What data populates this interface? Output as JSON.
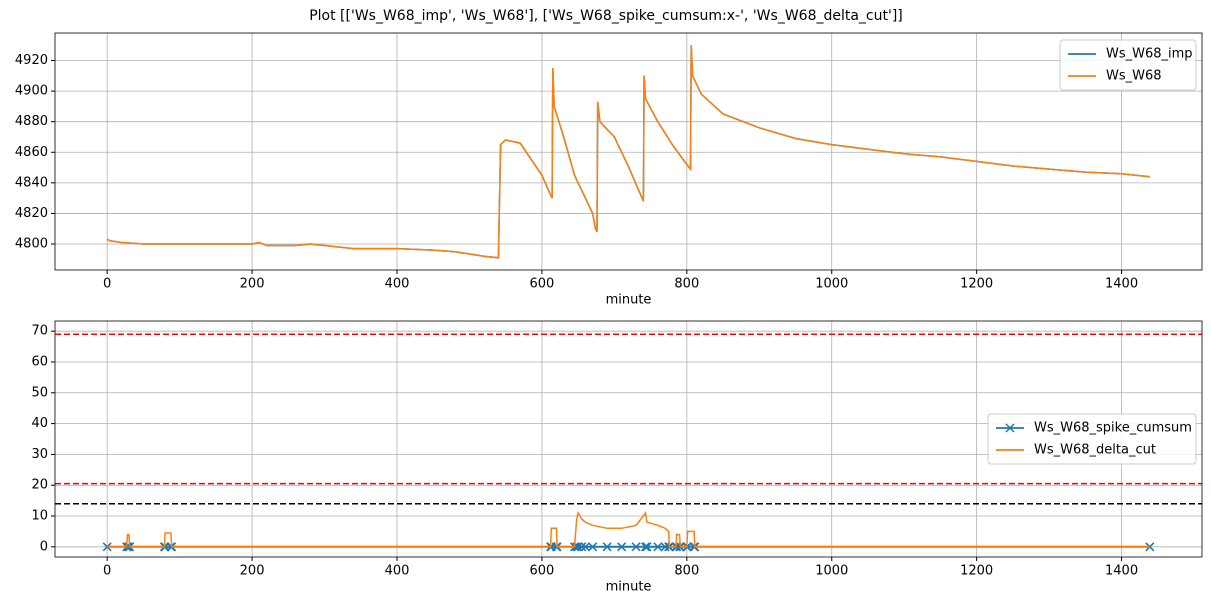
{
  "title": "Plot [['Ws_W68_imp', 'Ws_W68'], ['Ws_W68_spike_cumsum:x-', 'Ws_W68_delta_cut']]",
  "chart_data": [
    {
      "type": "line",
      "xlabel": "minute",
      "x": [
        0,
        5,
        20,
        50,
        100,
        150,
        200,
        210,
        220,
        260,
        280,
        300,
        340,
        400,
        450,
        480,
        520,
        540,
        543,
        550,
        570,
        580,
        600,
        612,
        614,
        615,
        617,
        630,
        645,
        650,
        660,
        670,
        674,
        676,
        677,
        680,
        700,
        720,
        740,
        741,
        743,
        760,
        780,
        800,
        805,
        806,
        808,
        820,
        850,
        900,
        950,
        1000,
        1050,
        1100,
        1150,
        1200,
        1250,
        1300,
        1350,
        1400,
        1439
      ],
      "series": [
        {
          "name": "Ws_W68_imp",
          "color": "#1f77b4",
          "values": [
            4803,
            4802,
            4801,
            4800,
            4800,
            4800,
            4800,
            4801,
            4799,
            4799,
            4800,
            4799,
            4797,
            4797,
            4796,
            4795,
            4792,
            4791,
            4865,
            4868,
            4866,
            4859,
            4845,
            4832,
            4830,
            4915,
            4890,
            4870,
            4845,
            4840,
            4830,
            4820,
            4810,
            4808,
            4893,
            4880,
            4870,
            4850,
            4828,
            4910,
            4895,
            4880,
            4865,
            4852,
            4849,
            4930,
            4910,
            4898,
            4885,
            4876,
            4869,
            4865,
            4862,
            4859,
            4857,
            4854,
            4851,
            4849,
            4847,
            4846,
            4844
          ]
        },
        {
          "name": "Ws_W68",
          "color": "#ff7f0e",
          "values": [
            4803,
            4802,
            4801,
            4800,
            4800,
            4800,
            4800,
            4801,
            4799,
            4799,
            4800,
            4799,
            4797,
            4797,
            4796,
            4795,
            4792,
            4791,
            4865,
            4868,
            4866,
            4859,
            4845,
            4832,
            4830,
            4915,
            4890,
            4870,
            4845,
            4840,
            4830,
            4820,
            4810,
            4808,
            4893,
            4880,
            4870,
            4850,
            4828,
            4910,
            4895,
            4880,
            4865,
            4852,
            4849,
            4930,
            4910,
            4898,
            4885,
            4876,
            4869,
            4865,
            4862,
            4859,
            4857,
            4854,
            4851,
            4849,
            4847,
            4846,
            4844
          ]
        }
      ],
      "xlim": [
        -72,
        1511
      ],
      "ylim": [
        4783,
        4938
      ],
      "xticks": [
        0,
        200,
        400,
        600,
        800,
        1000,
        1200,
        1400
      ],
      "yticks": [
        4800,
        4820,
        4840,
        4860,
        4880,
        4900,
        4920
      ],
      "grid": true,
      "legend": "upper right"
    },
    {
      "type": "line",
      "xlabel": "minute",
      "x": [
        0,
        27,
        28,
        30,
        31,
        79,
        80,
        88,
        89,
        612,
        613,
        620,
        621,
        645,
        648,
        650,
        655,
        660,
        670,
        690,
        710,
        730,
        743,
        745,
        760,
        770,
        775,
        776,
        785,
        786,
        790,
        791,
        800,
        801,
        810,
        811,
        1439
      ],
      "series": [
        {
          "name": "Ws_W68_spike_cumsum",
          "color": "#1f77b4",
          "marker": "x",
          "values": [
            0,
            0,
            0,
            0,
            0,
            0,
            0,
            0,
            0,
            0,
            0,
            0,
            0,
            0,
            0,
            0,
            0,
            0,
            0,
            0,
            0,
            0,
            0,
            0,
            0,
            0,
            0,
            0,
            0,
            0,
            0,
            0,
            0,
            0,
            0,
            0,
            0
          ]
        },
        {
          "name": "Ws_W68_delta_cut",
          "color": "#ff7f0e",
          "values": [
            0,
            0,
            4,
            4,
            0,
            0,
            4.5,
            4.5,
            0,
            0,
            6,
            6,
            0,
            0,
            9,
            11,
            9,
            8,
            7,
            6,
            6,
            7,
            11,
            8,
            7,
            6,
            5,
            0,
            0,
            4,
            4,
            0,
            0,
            5,
            5,
            0,
            0
          ]
        }
      ],
      "hlines": [
        {
          "y": 69,
          "color": "red"
        },
        {
          "y": 20.5,
          "color": "red"
        },
        {
          "y": 14,
          "color": "black"
        }
      ],
      "xlim": [
        -72,
        1511
      ],
      "ylim": [
        -3.3,
        73.3
      ],
      "xticks": [
        0,
        200,
        400,
        600,
        800,
        1000,
        1200,
        1400
      ],
      "yticks": [
        0,
        10,
        20,
        30,
        40,
        50,
        60,
        70
      ],
      "grid": true,
      "legend": "center right"
    }
  ]
}
